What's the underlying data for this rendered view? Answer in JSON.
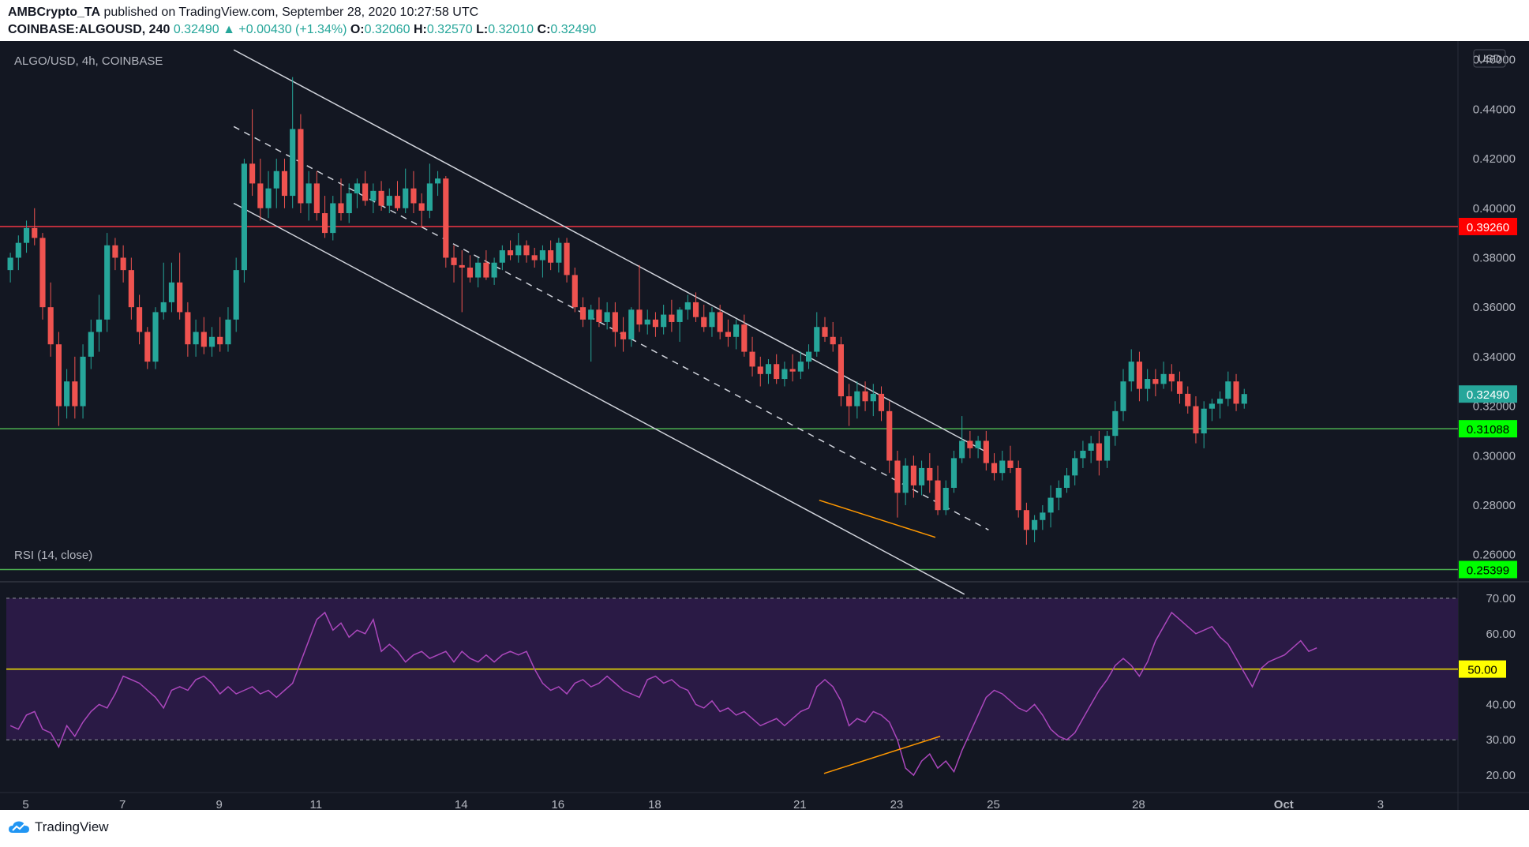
{
  "header": {
    "publisher": "AMBCrypto_TA",
    "published_text": "published on TradingView.com, September 28, 2020 10:27:58 UTC",
    "symbol": "COINBASE:ALGOUSD, 240",
    "last": "0.32490",
    "change": "▲ +0.00430 (+1.34%)",
    "open_label": "O:",
    "open": "0.32060",
    "high_label": "H:",
    "high": "0.32570",
    "low_label": "L:",
    "low": "0.32010",
    "close_label": "C:",
    "close": "0.32490"
  },
  "footer": {
    "brand": "TradingView"
  },
  "colors": {
    "bg": "#131722",
    "up": "#26a69a",
    "down": "#ef5350",
    "resistance": "#f23645",
    "support": "#4caf50",
    "channel": "#d1d4dc",
    "rsi_line": "#ab47bc",
    "rsi_band": "#2a1a45",
    "rsi_mid": "#f5e800",
    "diverge": "#ff9800"
  },
  "chart_data": [
    {
      "type": "candlestick",
      "title": "ALGO/USD, 4h, COINBASE",
      "currency": "USD",
      "ylim": [
        0.25,
        0.465
      ],
      "y_ticks": [
        "0.46000",
        "0.44000",
        "0.42000",
        "0.40000",
        "0.38000",
        "0.36000",
        "0.34000",
        "0.32000",
        "0.30000",
        "0.28000",
        "0.26000"
      ],
      "x_ticks": [
        {
          "label": "5",
          "day": 5
        },
        {
          "label": "7",
          "day": 7
        },
        {
          "label": "9",
          "day": 9
        },
        {
          "label": "11",
          "day": 11
        },
        {
          "label": "14",
          "day": 14
        },
        {
          "label": "16",
          "day": 16
        },
        {
          "label": "18",
          "day": 18
        },
        {
          "label": "21",
          "day": 21
        },
        {
          "label": "23",
          "day": 23
        },
        {
          "label": "25",
          "day": 25
        },
        {
          "label": "28",
          "day": 28
        },
        {
          "label": "Oct",
          "day": 31
        },
        {
          "label": "3",
          "day": 33
        }
      ],
      "levels": [
        {
          "name": "resistance",
          "value": 0.3926,
          "label": "0.39260"
        },
        {
          "name": "support-1",
          "value": 0.31088,
          "label": "0.31088"
        },
        {
          "name": "support-2",
          "value": 0.25399,
          "label": "0.25399"
        }
      ],
      "last_price": {
        "value": 0.3249,
        "label": "0.32490"
      },
      "channel": {
        "upper": [
          [
            9.3,
            0.464
          ],
          [
            24.9,
            0.301
          ]
        ],
        "mid": [
          [
            9.3,
            0.433
          ],
          [
            24.9,
            0.27
          ]
        ],
        "lower": [
          [
            9.3,
            0.402
          ],
          [
            24.4,
            0.244
          ]
        ]
      },
      "divergence_line": [
        [
          21.4,
          0.282
        ],
        [
          23.8,
          0.267
        ]
      ],
      "ohlc_4h": [
        [
          0.375,
          0.382,
          0.37,
          0.38
        ],
        [
          0.38,
          0.389,
          0.375,
          0.386
        ],
        [
          0.386,
          0.395,
          0.382,
          0.392
        ],
        [
          0.392,
          0.4,
          0.385,
          0.388
        ],
        [
          0.388,
          0.39,
          0.355,
          0.36
        ],
        [
          0.36,
          0.37,
          0.34,
          0.345
        ],
        [
          0.345,
          0.35,
          0.312,
          0.32
        ],
        [
          0.32,
          0.335,
          0.315,
          0.33
        ],
        [
          0.33,
          0.34,
          0.315,
          0.32
        ],
        [
          0.32,
          0.345,
          0.315,
          0.34
        ],
        [
          0.34,
          0.355,
          0.335,
          0.35
        ],
        [
          0.35,
          0.365,
          0.342,
          0.355
        ],
        [
          0.355,
          0.39,
          0.35,
          0.385
        ],
        [
          0.385,
          0.388,
          0.375,
          0.38
        ],
        [
          0.38,
          0.385,
          0.37,
          0.375
        ],
        [
          0.375,
          0.38,
          0.355,
          0.36
        ],
        [
          0.36,
          0.365,
          0.345,
          0.35
        ],
        [
          0.35,
          0.352,
          0.335,
          0.338
        ],
        [
          0.338,
          0.36,
          0.335,
          0.358
        ],
        [
          0.358,
          0.378,
          0.355,
          0.362
        ],
        [
          0.362,
          0.378,
          0.358,
          0.37
        ],
        [
          0.37,
          0.382,
          0.355,
          0.358
        ],
        [
          0.358,
          0.362,
          0.34,
          0.345
        ],
        [
          0.345,
          0.355,
          0.34,
          0.35
        ],
        [
          0.35,
          0.356,
          0.341,
          0.344
        ],
        [
          0.344,
          0.352,
          0.34,
          0.348
        ],
        [
          0.348,
          0.356,
          0.342,
          0.345
        ],
        [
          0.345,
          0.36,
          0.342,
          0.355
        ],
        [
          0.355,
          0.38,
          0.35,
          0.375
        ],
        [
          0.375,
          0.42,
          0.37,
          0.418
        ],
        [
          0.418,
          0.44,
          0.405,
          0.41
        ],
        [
          0.41,
          0.42,
          0.395,
          0.4
        ],
        [
          0.4,
          0.415,
          0.396,
          0.408
        ],
        [
          0.408,
          0.42,
          0.4,
          0.415
        ],
        [
          0.415,
          0.42,
          0.4,
          0.405
        ],
        [
          0.405,
          0.453,
          0.4,
          0.432
        ],
        [
          0.432,
          0.438,
          0.398,
          0.402
        ],
        [
          0.402,
          0.415,
          0.395,
          0.41
        ],
        [
          0.41,
          0.415,
          0.395,
          0.398
        ],
        [
          0.398,
          0.405,
          0.388,
          0.39
        ],
        [
          0.39,
          0.405,
          0.387,
          0.402
        ],
        [
          0.402,
          0.412,
          0.395,
          0.398
        ],
        [
          0.398,
          0.41,
          0.394,
          0.406
        ],
        [
          0.406,
          0.412,
          0.4,
          0.41
        ],
        [
          0.41,
          0.415,
          0.401,
          0.403
        ],
        [
          0.403,
          0.41,
          0.398,
          0.407
        ],
        [
          0.407,
          0.411,
          0.399,
          0.401
        ],
        [
          0.401,
          0.408,
          0.398,
          0.405
        ],
        [
          0.405,
          0.411,
          0.399,
          0.4
        ],
        [
          0.4,
          0.416,
          0.398,
          0.408
        ],
        [
          0.408,
          0.415,
          0.398,
          0.402
        ],
        [
          0.402,
          0.406,
          0.392,
          0.399
        ],
        [
          0.399,
          0.418,
          0.396,
          0.41
        ],
        [
          0.41,
          0.415,
          0.405,
          0.412
        ],
        [
          0.412,
          0.413,
          0.376,
          0.38
        ],
        [
          0.38,
          0.385,
          0.37,
          0.377
        ],
        [
          0.377,
          0.383,
          0.358,
          0.376
        ],
        [
          0.376,
          0.381,
          0.37,
          0.372
        ],
        [
          0.372,
          0.38,
          0.368,
          0.378
        ],
        [
          0.378,
          0.383,
          0.371,
          0.372
        ],
        [
          0.372,
          0.38,
          0.369,
          0.378
        ],
        [
          0.378,
          0.385,
          0.375,
          0.383
        ],
        [
          0.383,
          0.387,
          0.379,
          0.381
        ],
        [
          0.381,
          0.39,
          0.378,
          0.385
        ],
        [
          0.385,
          0.387,
          0.378,
          0.381
        ],
        [
          0.381,
          0.384,
          0.376,
          0.379
        ],
        [
          0.379,
          0.385,
          0.372,
          0.383
        ],
        [
          0.383,
          0.387,
          0.375,
          0.378
        ],
        [
          0.378,
          0.388,
          0.374,
          0.386
        ],
        [
          0.386,
          0.388,
          0.37,
          0.373
        ],
        [
          0.373,
          0.376,
          0.358,
          0.36
        ],
        [
          0.36,
          0.364,
          0.352,
          0.355
        ],
        [
          0.355,
          0.361,
          0.338,
          0.359
        ],
        [
          0.359,
          0.364,
          0.352,
          0.354
        ],
        [
          0.354,
          0.362,
          0.351,
          0.358
        ],
        [
          0.358,
          0.362,
          0.344,
          0.35
        ],
        [
          0.35,
          0.356,
          0.342,
          0.347
        ],
        [
          0.347,
          0.36,
          0.344,
          0.359
        ],
        [
          0.359,
          0.377,
          0.35,
          0.353
        ],
        [
          0.353,
          0.359,
          0.349,
          0.355
        ],
        [
          0.355,
          0.358,
          0.348,
          0.352
        ],
        [
          0.352,
          0.361,
          0.349,
          0.357
        ],
        [
          0.357,
          0.363,
          0.35,
          0.354
        ],
        [
          0.354,
          0.36,
          0.346,
          0.359
        ],
        [
          0.359,
          0.365,
          0.355,
          0.362
        ],
        [
          0.362,
          0.366,
          0.354,
          0.356
        ],
        [
          0.356,
          0.361,
          0.35,
          0.352
        ],
        [
          0.352,
          0.36,
          0.348,
          0.358
        ],
        [
          0.358,
          0.361,
          0.347,
          0.35
        ],
        [
          0.35,
          0.355,
          0.344,
          0.348
        ],
        [
          0.348,
          0.355,
          0.343,
          0.353
        ],
        [
          0.353,
          0.357,
          0.34,
          0.342
        ],
        [
          0.342,
          0.348,
          0.332,
          0.336
        ],
        [
          0.336,
          0.34,
          0.328,
          0.333
        ],
        [
          0.333,
          0.339,
          0.329,
          0.337
        ],
        [
          0.337,
          0.341,
          0.329,
          0.331
        ],
        [
          0.331,
          0.338,
          0.328,
          0.335
        ],
        [
          0.335,
          0.341,
          0.33,
          0.334
        ],
        [
          0.334,
          0.342,
          0.331,
          0.338
        ],
        [
          0.338,
          0.345,
          0.335,
          0.342
        ],
        [
          0.342,
          0.358,
          0.34,
          0.352
        ],
        [
          0.352,
          0.356,
          0.346,
          0.348
        ],
        [
          0.348,
          0.354,
          0.342,
          0.345
        ],
        [
          0.345,
          0.348,
          0.32,
          0.324
        ],
        [
          0.324,
          0.329,
          0.312,
          0.32
        ],
        [
          0.32,
          0.33,
          0.315,
          0.326
        ],
        [
          0.326,
          0.33,
          0.318,
          0.322
        ],
        [
          0.322,
          0.329,
          0.316,
          0.325
        ],
        [
          0.325,
          0.328,
          0.314,
          0.318
        ],
        [
          0.318,
          0.322,
          0.293,
          0.298
        ],
        [
          0.298,
          0.302,
          0.275,
          0.285
        ],
        [
          0.285,
          0.299,
          0.28,
          0.296
        ],
        [
          0.296,
          0.3,
          0.283,
          0.288
        ],
        [
          0.288,
          0.298,
          0.284,
          0.295
        ],
        [
          0.295,
          0.301,
          0.285,
          0.29
        ],
        [
          0.29,
          0.296,
          0.276,
          0.278
        ],
        [
          0.278,
          0.29,
          0.276,
          0.287
        ],
        [
          0.287,
          0.302,
          0.285,
          0.299
        ],
        [
          0.299,
          0.316,
          0.297,
          0.306
        ],
        [
          0.306,
          0.31,
          0.299,
          0.303
        ],
        [
          0.303,
          0.308,
          0.299,
          0.306
        ],
        [
          0.306,
          0.31,
          0.294,
          0.297
        ],
        [
          0.297,
          0.301,
          0.29,
          0.293
        ],
        [
          0.293,
          0.302,
          0.29,
          0.298
        ],
        [
          0.298,
          0.304,
          0.293,
          0.295
        ],
        [
          0.295,
          0.298,
          0.275,
          0.278
        ],
        [
          0.278,
          0.281,
          0.264,
          0.27
        ],
        [
          0.27,
          0.276,
          0.265,
          0.274
        ],
        [
          0.274,
          0.28,
          0.27,
          0.277
        ],
        [
          0.277,
          0.288,
          0.271,
          0.283
        ],
        [
          0.283,
          0.29,
          0.278,
          0.287
        ],
        [
          0.287,
          0.295,
          0.285,
          0.292
        ],
        [
          0.292,
          0.302,
          0.288,
          0.299
        ],
        [
          0.299,
          0.306,
          0.295,
          0.302
        ],
        [
          0.302,
          0.308,
          0.297,
          0.305
        ],
        [
          0.305,
          0.31,
          0.292,
          0.298
        ],
        [
          0.298,
          0.31,
          0.295,
          0.308
        ],
        [
          0.308,
          0.322,
          0.304,
          0.318
        ],
        [
          0.318,
          0.335,
          0.314,
          0.33
        ],
        [
          0.33,
          0.343,
          0.326,
          0.338
        ],
        [
          0.338,
          0.342,
          0.322,
          0.327
        ],
        [
          0.327,
          0.335,
          0.322,
          0.331
        ],
        [
          0.331,
          0.335,
          0.324,
          0.329
        ],
        [
          0.329,
          0.338,
          0.327,
          0.333
        ],
        [
          0.333,
          0.337,
          0.326,
          0.33
        ],
        [
          0.33,
          0.334,
          0.321,
          0.325
        ],
        [
          0.325,
          0.328,
          0.317,
          0.32
        ],
        [
          0.32,
          0.324,
          0.305,
          0.309
        ],
        [
          0.309,
          0.322,
          0.303,
          0.319
        ],
        [
          0.319,
          0.323,
          0.314,
          0.321
        ],
        [
          0.321,
          0.326,
          0.315,
          0.323
        ],
        [
          0.323,
          0.334,
          0.32,
          0.33
        ],
        [
          0.33,
          0.333,
          0.318,
          0.321
        ],
        [
          0.321,
          0.327,
          0.319,
          0.3249
        ]
      ],
      "rsi_day_offset": 0,
      "day_range": [
        4.6,
        34.6
      ]
    },
    {
      "type": "line",
      "title": "RSI (14, close)",
      "ylim": [
        16,
        74
      ],
      "y_ticks": [
        "70.00",
        "60.00",
        "50.00",
        "40.00",
        "30.00",
        "20.00"
      ],
      "band": [
        30,
        70
      ],
      "midline": {
        "value": 50,
        "label": "50.00"
      },
      "divergence_line": [
        [
          21.5,
          20.5
        ],
        [
          23.9,
          31.0
        ]
      ],
      "values": [
        34,
        33,
        37,
        38,
        33,
        32,
        28,
        34,
        31,
        35,
        38,
        40,
        39,
        43,
        48,
        47,
        46,
        44,
        42,
        39,
        44,
        45,
        44,
        47,
        48,
        46,
        43,
        45,
        43,
        44,
        45,
        43,
        44,
        42,
        44,
        46,
        52,
        58,
        64,
        66,
        61,
        63,
        59,
        61,
        60,
        64,
        55,
        57,
        55,
        52,
        54,
        55,
        53,
        54,
        55,
        52,
        55,
        53,
        52,
        54,
        52,
        54,
        55,
        54,
        55,
        50,
        46,
        44,
        45,
        43,
        46,
        47,
        45,
        46,
        48,
        46,
        44,
        43,
        42,
        47,
        48,
        46,
        47,
        45,
        44,
        40,
        39,
        41,
        38,
        39,
        37,
        38,
        36,
        34,
        35,
        36,
        34,
        36,
        38,
        39,
        45,
        47,
        45,
        41,
        34,
        36,
        35,
        38,
        37,
        35,
        30,
        22,
        20,
        24,
        26,
        22,
        24,
        21,
        27,
        32,
        37,
        42,
        44,
        43,
        41,
        39,
        38,
        40,
        37,
        33,
        31,
        30,
        32,
        36,
        40,
        44,
        47,
        51,
        53,
        51,
        48,
        52,
        58,
        62,
        66,
        64,
        62,
        60,
        61,
        62,
        59,
        57,
        53,
        49,
        45,
        50,
        52,
        53,
        54,
        56,
        58,
        55,
        56
      ]
    }
  ]
}
